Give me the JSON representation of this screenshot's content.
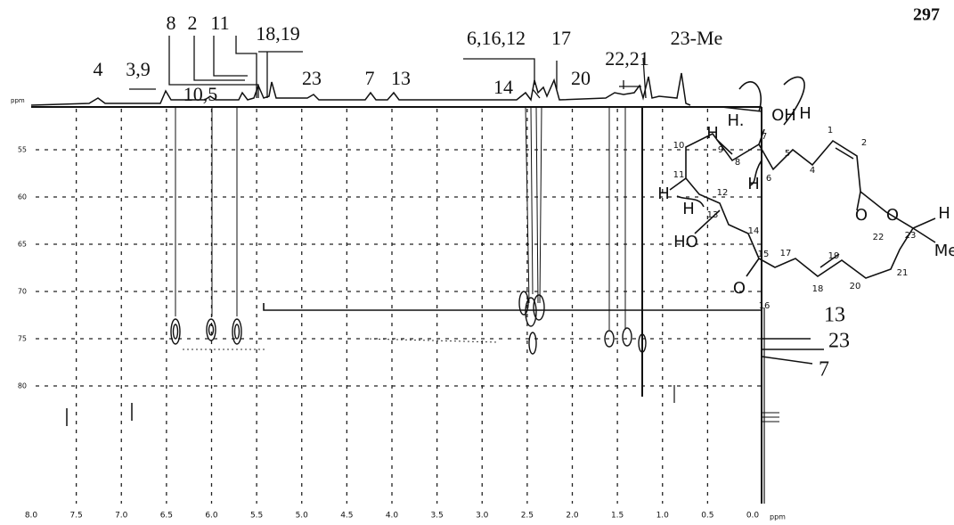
{
  "page_number": "297",
  "spectrum": {
    "peak_labels": [
      "4",
      "3,9",
      "8",
      "2",
      "11",
      "18,19",
      "23",
      "7",
      "13",
      "10,5",
      "6,16,12",
      "17",
      "14",
      "20",
      "22,21",
      "23-Me"
    ],
    "x_ticks": [
      "8.0",
      "7.5",
      "7.0",
      "6.5",
      "6.0",
      "5.5",
      "5.0",
      "4.5",
      "4.0",
      "3.5",
      "3.0",
      "2.5",
      "2.0",
      "1.5",
      "1.0",
      "0.5",
      "0.0"
    ],
    "x_unit": "ppm",
    "y_unit": "ppm",
    "y_ticks": [
      "55",
      "60",
      "65",
      "70",
      "75",
      "80"
    ],
    "cross_peak_labels": [
      "13",
      "23",
      "7"
    ]
  },
  "structure": {
    "atom_labels": [
      "H",
      "H.",
      "OH",
      "H",
      "10",
      "11",
      "9",
      "8",
      "7",
      "6",
      "5",
      "4",
      "1",
      "2",
      "H",
      "O",
      "O",
      "23",
      "H",
      "Me",
      "22",
      "21",
      "20",
      "19",
      "18",
      "17",
      "16",
      "15",
      "O",
      "14",
      "13",
      "HO",
      "H",
      "12",
      "H"
    ]
  }
}
